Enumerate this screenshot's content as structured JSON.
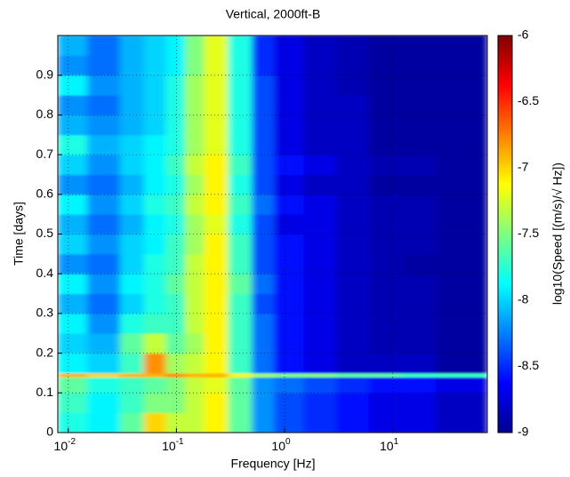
{
  "chart_data": {
    "type": "heatmap",
    "title": "Vertical, 2000ft-B",
    "xlabel": "Frequency [Hz]",
    "ylabel": "Time [days]",
    "colorbar_label": "log10(Speed [(m/s)/√ Hz])",
    "xscale": "log",
    "grid": true,
    "colormap": "jet",
    "xlim": [
      0.008,
      75
    ],
    "xticks": [
      {
        "value": 0.01,
        "label": "10",
        "exponent": "-2"
      },
      {
        "value": 0.1,
        "label": "10",
        "exponent": "-1"
      },
      {
        "value": 1,
        "label": "10",
        "exponent": "0"
      },
      {
        "value": 10,
        "label": "10",
        "exponent": "1"
      }
    ],
    "ylim": [
      0,
      1
    ],
    "yticks": [
      0,
      0.1,
      0.2,
      0.3,
      0.4,
      0.5,
      0.6,
      0.7,
      0.8,
      0.9
    ],
    "zlim": [
      -9,
      -6
    ],
    "zticks": [
      -6,
      -6.5,
      -7,
      -7.5,
      -8,
      -8.5,
      -9
    ],
    "x_edges": [
      0.008,
      0.015,
      0.03,
      0.05,
      0.08,
      0.12,
      0.18,
      0.3,
      0.5,
      0.8,
      1.5,
      3,
      6,
      12,
      25,
      75
    ],
    "y_edges": [
      0,
      0.05,
      0.1,
      0.14,
      0.15,
      0.2,
      0.25,
      0.3,
      0.35,
      0.4,
      0.45,
      0.5,
      0.55,
      0.6,
      0.65,
      0.7,
      0.75,
      0.8,
      0.85,
      0.9,
      0.95,
      1.0
    ],
    "values": [
      [
        -7.8,
        -7.9,
        -7.6,
        -7.0,
        -7.3,
        -7.3,
        -7.1,
        -7.6,
        -8.2,
        -8.4,
        -8.5,
        -8.6,
        -8.7,
        -8.7,
        -8.8
      ],
      [
        -7.7,
        -7.9,
        -7.7,
        -7.5,
        -7.5,
        -7.3,
        -7.1,
        -7.6,
        -8.2,
        -8.4,
        -8.5,
        -8.6,
        -8.7,
        -8.7,
        -8.8
      ],
      [
        -7.6,
        -7.8,
        -7.7,
        -7.6,
        -7.5,
        -7.3,
        -7.2,
        -7.6,
        -8.2,
        -8.3,
        -8.4,
        -8.5,
        -8.6,
        -8.6,
        -8.7
      ],
      [
        -6.9,
        -7.0,
        -6.9,
        -6.9,
        -6.8,
        -6.9,
        -6.9,
        -7.1,
        -7.4,
        -7.5,
        -7.5,
        -7.6,
        -7.6,
        -7.7,
        -7.7
      ],
      [
        -7.9,
        -8.0,
        -7.7,
        -6.8,
        -7.4,
        -7.3,
        -7.1,
        -7.7,
        -8.3,
        -8.6,
        -8.7,
        -8.8,
        -8.8,
        -8.8,
        -8.9
      ],
      [
        -8.0,
        -8.1,
        -7.6,
        -7.3,
        -7.6,
        -7.4,
        -7.1,
        -7.7,
        -8.3,
        -8.6,
        -8.7,
        -8.8,
        -8.85,
        -8.85,
        -8.9
      ],
      [
        -7.9,
        -8.2,
        -7.8,
        -7.7,
        -7.7,
        -7.3,
        -7.1,
        -7.7,
        -8.3,
        -8.6,
        -8.7,
        -8.8,
        -8.85,
        -8.85,
        -8.9
      ],
      [
        -8.1,
        -8.3,
        -8.0,
        -7.8,
        -7.7,
        -7.3,
        -7.1,
        -7.7,
        -8.4,
        -8.6,
        -8.7,
        -8.8,
        -8.85,
        -8.85,
        -8.9
      ],
      [
        -7.9,
        -8.2,
        -7.9,
        -7.8,
        -7.6,
        -7.3,
        -7.1,
        -7.6,
        -8.3,
        -8.6,
        -8.7,
        -8.8,
        -8.85,
        -8.85,
        -8.9
      ],
      [
        -8.2,
        -8.3,
        -8.0,
        -7.8,
        -7.7,
        -7.3,
        -7.1,
        -7.7,
        -8.4,
        -8.6,
        -8.7,
        -8.8,
        -8.85,
        -8.9,
        -8.9
      ],
      [
        -8.0,
        -8.2,
        -8.0,
        -7.9,
        -7.7,
        -7.4,
        -7.1,
        -7.7,
        -8.4,
        -8.6,
        -8.7,
        -8.8,
        -8.85,
        -8.85,
        -8.9
      ],
      [
        -8.1,
        -8.3,
        -8.1,
        -7.9,
        -7.8,
        -7.4,
        -7.2,
        -7.8,
        -8.4,
        -8.7,
        -8.7,
        -8.8,
        -8.85,
        -8.85,
        -8.9
      ],
      [
        -7.9,
        -8.2,
        -8.0,
        -7.8,
        -7.7,
        -7.3,
        -7.1,
        -7.7,
        -8.3,
        -8.6,
        -8.7,
        -8.8,
        -8.85,
        -8.85,
        -8.9
      ],
      [
        -8.2,
        -8.3,
        -8.1,
        -7.9,
        -7.8,
        -7.4,
        -7.1,
        -7.8,
        -8.4,
        -8.7,
        -8.8,
        -8.8,
        -8.9,
        -8.9,
        -8.9
      ],
      [
        -8.0,
        -8.2,
        -8.0,
        -7.9,
        -7.7,
        -7.3,
        -7.1,
        -7.7,
        -8.4,
        -8.6,
        -8.7,
        -8.8,
        -8.85,
        -8.85,
        -8.9
      ],
      [
        -7.8,
        -8.1,
        -8.0,
        -7.9,
        -7.8,
        -7.4,
        -7.2,
        -7.8,
        -8.4,
        -8.7,
        -8.8,
        -8.8,
        -8.9,
        -8.9,
        -8.9
      ],
      [
        -8.1,
        -8.2,
        -8.1,
        -8.0,
        -7.8,
        -7.4,
        -7.2,
        -7.8,
        -8.4,
        -8.7,
        -8.8,
        -8.8,
        -8.9,
        -8.9,
        -8.9
      ],
      [
        -8.2,
        -8.3,
        -8.1,
        -8.0,
        -7.8,
        -7.4,
        -7.2,
        -7.8,
        -8.4,
        -8.7,
        -8.8,
        -8.8,
        -8.9,
        -8.9,
        -8.9
      ],
      [
        -7.9,
        -8.2,
        -8.1,
        -8.0,
        -7.8,
        -7.4,
        -7.2,
        -7.8,
        -8.4,
        -8.7,
        -8.8,
        -8.85,
        -8.9,
        -8.9,
        -8.9
      ],
      [
        -8.2,
        -8.3,
        -8.1,
        -8.0,
        -7.9,
        -7.5,
        -7.2,
        -7.8,
        -8.5,
        -8.7,
        -8.8,
        -8.85,
        -8.9,
        -8.9,
        -8.9
      ],
      [
        -8.1,
        -8.3,
        -8.1,
        -8.0,
        -7.9,
        -7.5,
        -7.2,
        -7.8,
        -8.5,
        -8.7,
        -8.8,
        -8.85,
        -8.9,
        -8.9,
        -8.9
      ]
    ]
  }
}
